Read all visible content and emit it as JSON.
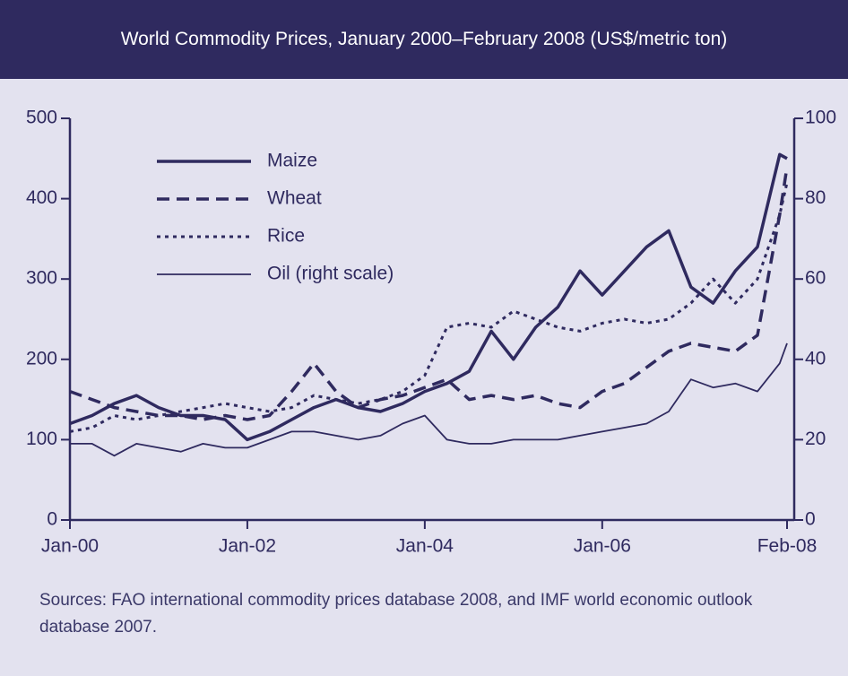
{
  "chart_data": {
    "type": "line",
    "title": "World Commodity Prices, January 2000–February 2008 (US$/metric ton)",
    "source": "Sources: FAO international commodity prices database 2008, and IMF world economic outlook database 2007.",
    "x": [
      0,
      3,
      6,
      9,
      12,
      15,
      18,
      21,
      24,
      27,
      30,
      33,
      36,
      39,
      42,
      45,
      48,
      51,
      54,
      57,
      60,
      63,
      66,
      69,
      72,
      75,
      78,
      81,
      84,
      87,
      90,
      93,
      96,
      97
    ],
    "xlim": [
      0,
      97
    ],
    "xticks": [
      {
        "value": 0,
        "label": "Jan-00"
      },
      {
        "value": 24,
        "label": "Jan-02"
      },
      {
        "value": 48,
        "label": "Jan-04"
      },
      {
        "value": 72,
        "label": "Jan-06"
      },
      {
        "value": 97,
        "label": "Feb-08"
      }
    ],
    "ylim": [
      0,
      500
    ],
    "yticks": [
      0,
      100,
      200,
      300,
      400,
      500
    ],
    "y2lim": [
      0,
      100
    ],
    "y2ticks": [
      0,
      20,
      40,
      60,
      80,
      100
    ],
    "legend": "upper left",
    "series": [
      {
        "name": "Maize",
        "color": "#2f2a5f",
        "style": "solid",
        "width": 3.5,
        "values": [
          120,
          130,
          145,
          155,
          140,
          130,
          130,
          125,
          100,
          110,
          125,
          140,
          150,
          140,
          135,
          145,
          160,
          170,
          185,
          235,
          200,
          240,
          265,
          310,
          280,
          310,
          340,
          360,
          290,
          270,
          310,
          340,
          455,
          450
        ]
      },
      {
        "name": "Wheat",
        "color": "#2f2a5f",
        "style": "dashed",
        "width": 3.5,
        "values": [
          160,
          150,
          140,
          135,
          130,
          130,
          125,
          130,
          125,
          130,
          160,
          195,
          160,
          140,
          150,
          155,
          165,
          175,
          150,
          155,
          150,
          155,
          145,
          140,
          160,
          170,
          190,
          210,
          220,
          215,
          210,
          230,
          380,
          440
        ]
      },
      {
        "name": "Rice",
        "color": "#2f2a5f",
        "style": "dotted",
        "width": 3,
        "values": [
          110,
          115,
          130,
          125,
          130,
          135,
          140,
          145,
          140,
          135,
          140,
          155,
          150,
          145,
          150,
          160,
          180,
          240,
          245,
          240,
          260,
          250,
          240,
          235,
          245,
          250,
          245,
          250,
          270,
          300,
          270,
          300,
          380,
          420
        ]
      },
      {
        "name": "Oil (right scale)",
        "color": "#2f2a5f",
        "style": "solid",
        "width": 1.8,
        "axis": "y2",
        "values": [
          19,
          19,
          16,
          19,
          18,
          17,
          19,
          18,
          18,
          20,
          22,
          22,
          21,
          20,
          21,
          24,
          26,
          20,
          19,
          19,
          20,
          20,
          20,
          21,
          22,
          23,
          24,
          27,
          35,
          33,
          34,
          32,
          39,
          44
        ]
      }
    ]
  }
}
